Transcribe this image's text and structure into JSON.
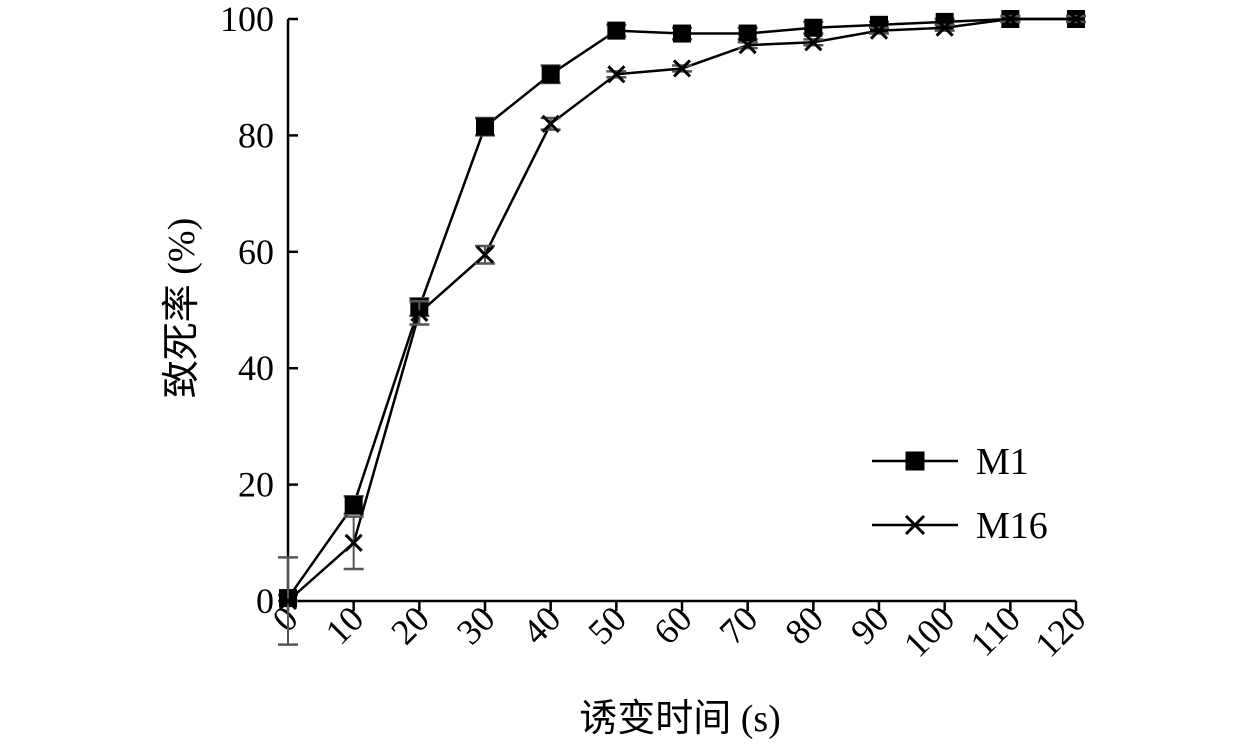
{
  "chart_data": {
    "type": "line",
    "title": "",
    "xlabel": "诱变时间 (s)",
    "ylabel": "致死率 (%)",
    "x": [
      0,
      10,
      20,
      30,
      40,
      50,
      60,
      70,
      80,
      90,
      100,
      110,
      120
    ],
    "x_tick_labels": [
      "0",
      "10",
      "20",
      "30",
      "40",
      "50",
      "60",
      "70",
      "80",
      "90",
      "100",
      "110",
      "120"
    ],
    "y_tick_labels": [
      "0",
      "20",
      "40",
      "60",
      "80",
      "100"
    ],
    "xlim": [
      0,
      120
    ],
    "ylim": [
      0,
      100
    ],
    "grid": false,
    "legend_position": "lower-right",
    "series": [
      {
        "name": "M1",
        "marker": "square",
        "values": [
          0.5,
          16.5,
          50.5,
          81.5,
          90.5,
          98,
          97.5,
          97.5,
          98.5,
          99,
          99.5,
          100,
          100
        ],
        "errors": [
          0.5,
          1.5,
          1.5,
          1.5,
          1.5,
          1,
          1,
          1,
          1,
          0.5,
          0.5,
          0.5,
          0.5
        ]
      },
      {
        "name": "M16",
        "marker": "x",
        "values": [
          0,
          10,
          49.5,
          59.5,
          82,
          90.5,
          91.5,
          95.5,
          96,
          98,
          98.5,
          100,
          100
        ],
        "errors": [
          7.5,
          4.5,
          2,
          1.5,
          1,
          0.5,
          0.5,
          0.5,
          0.5,
          0.5,
          0.5,
          0.5,
          0.5
        ]
      }
    ],
    "colors": {
      "line": "#000000",
      "errorbar": "#555555",
      "marker": "#000000"
    }
  }
}
